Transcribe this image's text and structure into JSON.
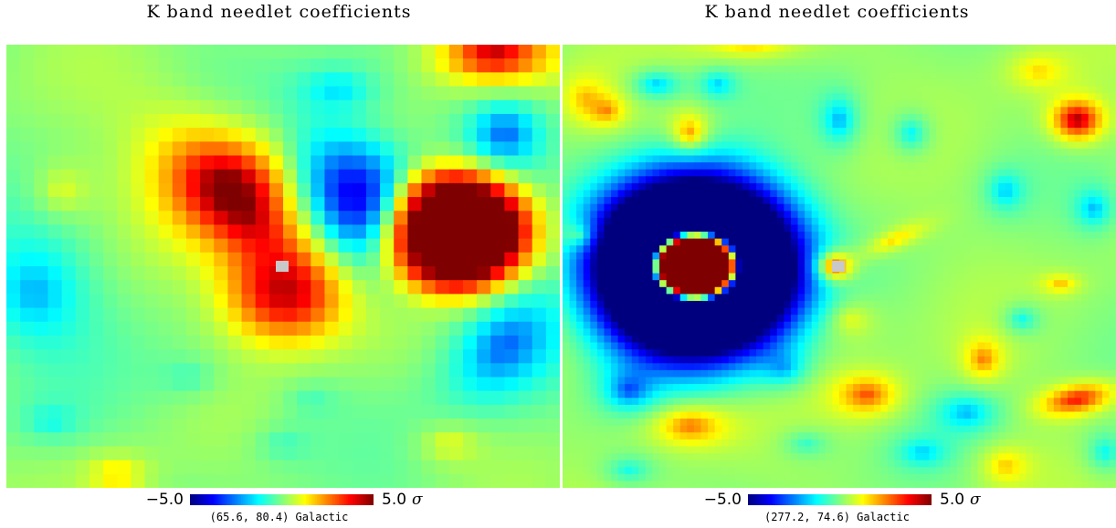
{
  "colors": {
    "colormap": [
      "#00007f",
      "#0000ff",
      "#0080ff",
      "#00ffff",
      "#80ff80",
      "#ffff00",
      "#ff8000",
      "#ff0000",
      "#7f0000"
    ],
    "saturated_pixel": "#c8c8c8"
  },
  "chart_data": [
    {
      "type": "heatmap",
      "title": "K band needlet coefficients",
      "colorbar": {
        "min": -5.0,
        "max": 5.0,
        "min_label": "−5.0",
        "max_label": "5.0",
        "unit": "σ"
      },
      "coordinate_label": "(65.6, 80.4) Galactic",
      "background_level": 0.05,
      "features": [
        {
          "x": 0.43,
          "y": 0.38,
          "rx": 0.09,
          "ry": 0.2,
          "rot": -35,
          "amp": 3.6,
          "sharp": 1.6
        },
        {
          "x": 0.41,
          "y": 0.31,
          "rx": 0.11,
          "ry": 0.1,
          "rot": 0,
          "amp": 2.5,
          "sharp": 1.6
        },
        {
          "x": 0.5,
          "y": 0.57,
          "rx": 0.1,
          "ry": 0.1,
          "rot": 0,
          "amp": 3.5,
          "sharp": 2.0
        },
        {
          "x": 0.81,
          "y": 0.42,
          "rx": 0.13,
          "ry": 0.13,
          "rot": 0,
          "amp": 9.0,
          "sharp": 3.0
        },
        {
          "x": 0.64,
          "y": 0.35,
          "rx": 0.1,
          "ry": 0.16,
          "rot": -30,
          "amp": -4.6,
          "sharp": 2.0
        },
        {
          "x": 0.9,
          "y": 0.2,
          "rx": 0.06,
          "ry": 0.07,
          "rot": 0,
          "amp": -2.6,
          "sharp": 1.6
        },
        {
          "x": 0.9,
          "y": 0.68,
          "rx": 0.08,
          "ry": 0.12,
          "rot": 30,
          "amp": -2.8,
          "sharp": 1.6
        },
        {
          "x": 0.05,
          "y": 0.56,
          "rx": 0.09,
          "ry": 0.12,
          "rot": 0,
          "amp": -2.1,
          "sharp": 1.4
        },
        {
          "x": 0.88,
          "y": 0.02,
          "rx": 0.09,
          "ry": 0.06,
          "rot": 0,
          "amp": 4.2,
          "sharp": 1.6
        },
        {
          "x": 0.6,
          "y": 0.1,
          "rx": 0.07,
          "ry": 0.05,
          "rot": 0,
          "amp": -1.6,
          "sharp": 1.4
        },
        {
          "x": 0.1,
          "y": 0.33,
          "rx": 0.05,
          "ry": 0.06,
          "rot": 0,
          "amp": 1.2,
          "sharp": 1.4
        },
        {
          "x": 0.2,
          "y": 0.97,
          "rx": 0.05,
          "ry": 0.04,
          "rot": 0,
          "amp": 1.7,
          "sharp": 1.4
        },
        {
          "x": 0.8,
          "y": 0.9,
          "rx": 0.05,
          "ry": 0.04,
          "rot": 0,
          "amp": 1.2,
          "sharp": 1.4
        },
        {
          "x": 0.5,
          "y": 0.9,
          "rx": 0.05,
          "ry": 0.04,
          "rot": 0,
          "amp": -0.8,
          "sharp": 1.4
        },
        {
          "x": 0.33,
          "y": 0.75,
          "rx": 0.05,
          "ry": 0.04,
          "rot": 0,
          "amp": -0.8,
          "sharp": 1.4
        },
        {
          "x": 0.55,
          "y": 0.8,
          "rx": 0.05,
          "ry": 0.04,
          "rot": 0,
          "amp": -0.7,
          "sharp": 1.4
        },
        {
          "x": 0.08,
          "y": 0.85,
          "rx": 0.05,
          "ry": 0.04,
          "rot": 0,
          "amp": -1.0,
          "sharp": 1.4
        }
      ],
      "saturated_pixels": [
        {
          "x": 0.5,
          "y": 0.5
        }
      ]
    },
    {
      "type": "heatmap",
      "title": "K band needlet coefficients",
      "colorbar": {
        "min": -5.0,
        "max": 5.0,
        "min_label": "−5.0",
        "max_label": "5.0",
        "unit": "σ"
      },
      "coordinate_label": "(277.2, 74.6) Galactic",
      "background_level": 0.2,
      "features": [
        {
          "x": 0.24,
          "y": 0.5,
          "rx": 0.19,
          "ry": 0.21,
          "rot": 0,
          "amp": -12.0,
          "sharp": 3.0
        },
        {
          "x": 0.24,
          "y": 0.5,
          "rx": 0.076,
          "ry": 0.076,
          "rot": 0,
          "amp": 22.0,
          "sharp": 6.0
        },
        {
          "x": 0.49,
          "y": 0.5,
          "rx": 0.03,
          "ry": 0.03,
          "rot": 0,
          "amp": 4.0,
          "sharp": 1.6
        },
        {
          "x": 0.6,
          "y": 0.44,
          "rx": 0.06,
          "ry": 0.02,
          "rot": -30,
          "amp": 1.6,
          "sharp": 1.4
        },
        {
          "x": 0.93,
          "y": 0.17,
          "rx": 0.04,
          "ry": 0.04,
          "rot": 0,
          "amp": 4.5,
          "sharp": 1.6
        },
        {
          "x": 0.93,
          "y": 0.8,
          "rx": 0.06,
          "ry": 0.03,
          "rot": -15,
          "amp": 3.5,
          "sharp": 1.6
        },
        {
          "x": 0.23,
          "y": 0.86,
          "rx": 0.06,
          "ry": 0.04,
          "rot": 0,
          "amp": 2.6,
          "sharp": 1.4
        },
        {
          "x": 0.55,
          "y": 0.79,
          "rx": 0.05,
          "ry": 0.04,
          "rot": 0,
          "amp": 2.8,
          "sharp": 1.4
        },
        {
          "x": 0.76,
          "y": 0.71,
          "rx": 0.03,
          "ry": 0.04,
          "rot": 0,
          "amp": 2.2,
          "sharp": 1.4
        },
        {
          "x": 0.23,
          "y": 0.2,
          "rx": 0.03,
          "ry": 0.04,
          "rot": 0,
          "amp": 2.6,
          "sharp": 1.4
        },
        {
          "x": 0.04,
          "y": 0.12,
          "rx": 0.04,
          "ry": 0.05,
          "rot": 0,
          "amp": 1.4,
          "sharp": 1.4
        },
        {
          "x": 0.08,
          "y": 0.15,
          "rx": 0.03,
          "ry": 0.03,
          "rot": 0,
          "amp": 1.8,
          "sharp": 1.4
        },
        {
          "x": 0.34,
          "y": 0.0,
          "rx": 0.08,
          "ry": 0.03,
          "rot": 0,
          "amp": 1.6,
          "sharp": 1.4
        },
        {
          "x": 0.03,
          "y": 0.43,
          "rx": 0.03,
          "ry": 0.03,
          "rot": 0,
          "amp": 2.0,
          "sharp": 1.4
        },
        {
          "x": 0.9,
          "y": 0.54,
          "rx": 0.03,
          "ry": 0.02,
          "rot": 0,
          "amp": 1.6,
          "sharp": 1.4
        },
        {
          "x": 0.86,
          "y": 0.06,
          "rx": 0.05,
          "ry": 0.04,
          "rot": 0,
          "amp": 1.4,
          "sharp": 1.4
        },
        {
          "x": 0.8,
          "y": 0.95,
          "rx": 0.04,
          "ry": 0.04,
          "rot": 0,
          "amp": 1.6,
          "sharp": 1.4
        },
        {
          "x": 0.52,
          "y": 0.62,
          "rx": 0.04,
          "ry": 0.04,
          "rot": 0,
          "amp": 1.2,
          "sharp": 1.4
        },
        {
          "x": 0.17,
          "y": 0.09,
          "rx": 0.04,
          "ry": 0.03,
          "rot": 0,
          "amp": -2.2,
          "sharp": 1.4
        },
        {
          "x": 0.28,
          "y": 0.09,
          "rx": 0.03,
          "ry": 0.03,
          "rot": 0,
          "amp": -1.8,
          "sharp": 1.4
        },
        {
          "x": 0.5,
          "y": 0.17,
          "rx": 0.03,
          "ry": 0.05,
          "rot": 0,
          "amp": -2.2,
          "sharp": 1.4
        },
        {
          "x": 0.63,
          "y": 0.2,
          "rx": 0.03,
          "ry": 0.04,
          "rot": 0,
          "amp": -1.8,
          "sharp": 1.4
        },
        {
          "x": 0.8,
          "y": 0.33,
          "rx": 0.03,
          "ry": 0.04,
          "rot": 0,
          "amp": -1.8,
          "sharp": 1.4
        },
        {
          "x": 0.96,
          "y": 0.37,
          "rx": 0.03,
          "ry": 0.04,
          "rot": 0,
          "amp": -2.0,
          "sharp": 1.4
        },
        {
          "x": 0.12,
          "y": 0.78,
          "rx": 0.04,
          "ry": 0.04,
          "rot": 0,
          "amp": -2.6,
          "sharp": 1.4
        },
        {
          "x": 0.4,
          "y": 0.73,
          "rx": 0.04,
          "ry": 0.04,
          "rot": 0,
          "amp": -1.8,
          "sharp": 1.4
        },
        {
          "x": 0.73,
          "y": 0.83,
          "rx": 0.05,
          "ry": 0.04,
          "rot": 0,
          "amp": -2.0,
          "sharp": 1.4
        },
        {
          "x": 0.83,
          "y": 0.62,
          "rx": 0.03,
          "ry": 0.03,
          "rot": 0,
          "amp": -1.6,
          "sharp": 1.4
        },
        {
          "x": 0.65,
          "y": 0.92,
          "rx": 0.04,
          "ry": 0.03,
          "rot": 0,
          "amp": -1.6,
          "sharp": 1.4
        },
        {
          "x": 0.44,
          "y": 0.9,
          "rx": 0.04,
          "ry": 0.03,
          "rot": 0,
          "amp": -1.2,
          "sharp": 1.4
        },
        {
          "x": 0.12,
          "y": 0.96,
          "rx": 0.04,
          "ry": 0.03,
          "rot": 0,
          "amp": -1.4,
          "sharp": 1.4
        },
        {
          "x": 0.98,
          "y": 0.92,
          "rx": 0.03,
          "ry": 0.04,
          "rot": 0,
          "amp": -1.6,
          "sharp": 1.4
        }
      ],
      "saturated_pixels": [
        {
          "x": 0.5,
          "y": 0.5
        }
      ]
    }
  ]
}
